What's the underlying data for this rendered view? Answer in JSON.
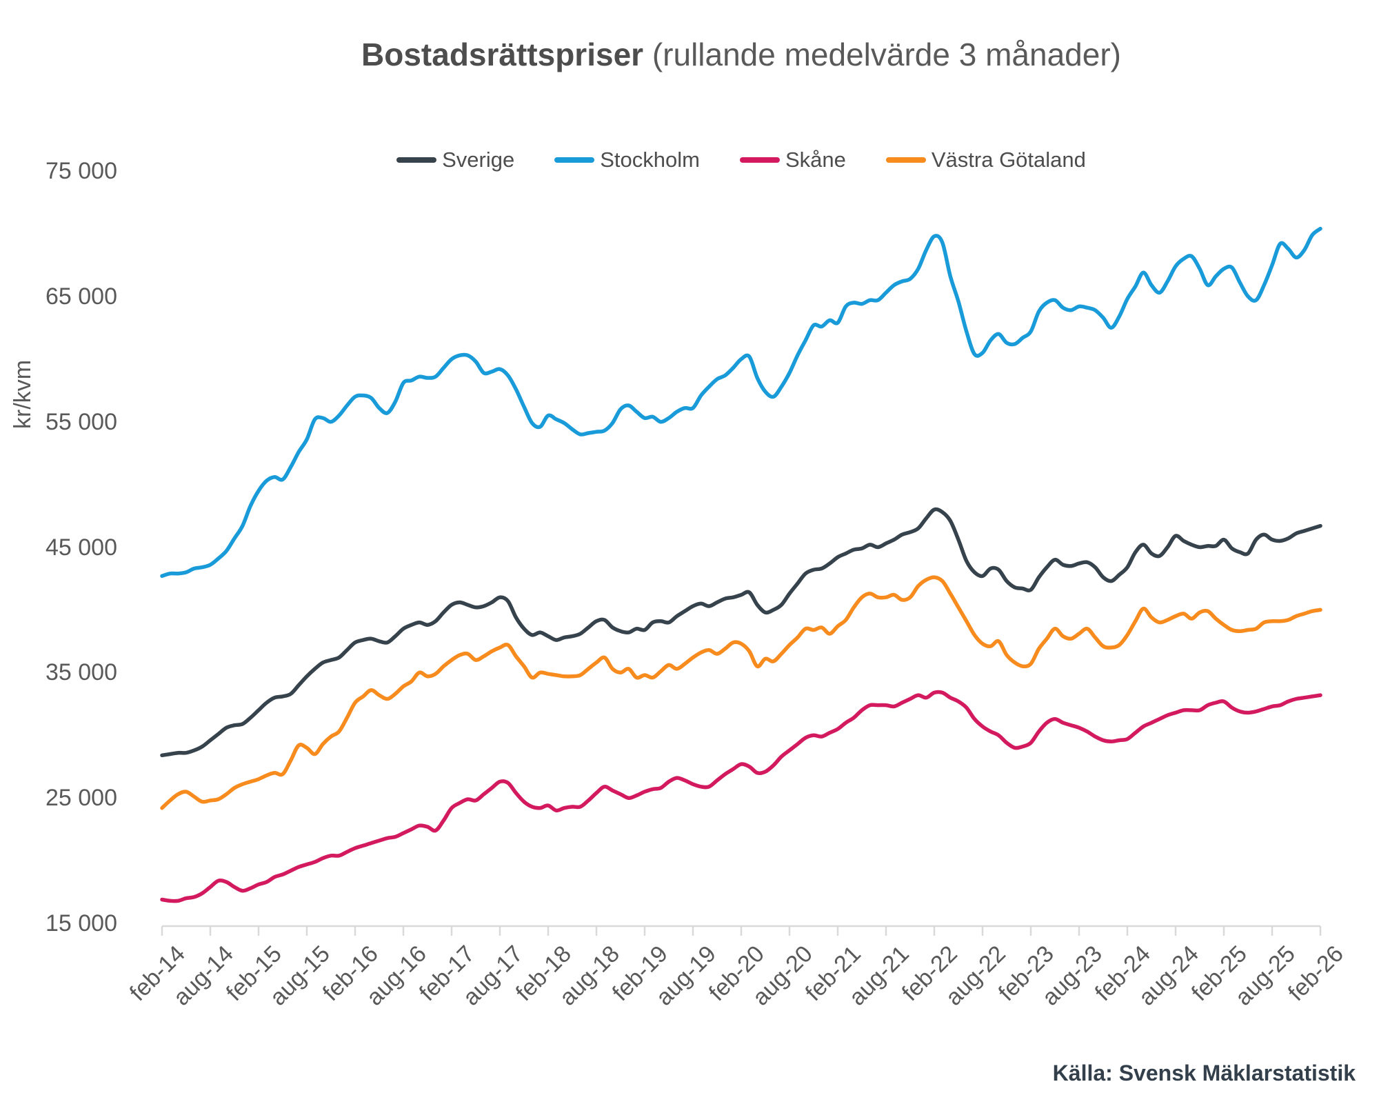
{
  "title": {
    "bold": "Bostadsrättspriser",
    "regular": " (rullande medelvärde 3 månader)"
  },
  "source_note": "Källa: Svensk Mäklarstatistik",
  "y_axis": {
    "title": "kr/kvm",
    "tick_labels": [
      "75 000",
      "65 000",
      "55 000",
      "45 000",
      "35 000",
      "25 000",
      "15 000"
    ],
    "tick_values": [
      75000,
      65000,
      55000,
      45000,
      35000,
      25000,
      15000
    ]
  },
  "x_axis": {
    "tick_labels": [
      "feb-14",
      "aug-14",
      "feb-15",
      "aug-15",
      "feb-16",
      "aug-16",
      "feb-17",
      "aug-17",
      "feb-18",
      "aug-18",
      "feb-19",
      "aug-19",
      "feb-20",
      "aug-20",
      "feb-21",
      "aug-21",
      "feb-22",
      "aug-22",
      "feb-23",
      "aug-23",
      "feb-24",
      "aug-24",
      "feb-25",
      "aug-25",
      "feb-26"
    ]
  },
  "chart_data": {
    "type": "line",
    "title": "Bostadsrättspriser (rullande medelvärde 3 månader)",
    "ylabel": "kr/kvm",
    "ylim": [
      15000,
      75000
    ],
    "grid": false,
    "legend_position": "top-center",
    "x_start": "2014-02",
    "x_end": "2026-02",
    "x_frequency": "monthly",
    "n_points": 145,
    "x_tick_labels": [
      "feb-14",
      "aug-14",
      "feb-15",
      "aug-15",
      "feb-16",
      "aug-16",
      "feb-17",
      "aug-17",
      "feb-18",
      "aug-18",
      "feb-19",
      "aug-19",
      "feb-20",
      "aug-20",
      "feb-21",
      "aug-21",
      "feb-22",
      "aug-22",
      "feb-23",
      "aug-23",
      "feb-24",
      "aug-24",
      "feb-25",
      "aug-25",
      "feb-26"
    ],
    "series": [
      {
        "name": "Sverige",
        "color": "#36424c",
        "values": [
          28400,
          28500,
          28600,
          28600,
          28800,
          29100,
          29600,
          30100,
          30600,
          30800,
          30900,
          31400,
          32000,
          32600,
          33000,
          33100,
          33300,
          34000,
          34700,
          35300,
          35800,
          36000,
          36200,
          36800,
          37400,
          37600,
          37700,
          37500,
          37400,
          37900,
          38500,
          38800,
          39000,
          38800,
          39100,
          39800,
          40400,
          40600,
          40400,
          40200,
          40300,
          40600,
          41000,
          40700,
          39400,
          38500,
          38000,
          38200,
          37900,
          37600,
          37800,
          37900,
          38100,
          38600,
          39100,
          39200,
          38600,
          38300,
          38200,
          38500,
          38400,
          39000,
          39100,
          39000,
          39500,
          39900,
          40300,
          40500,
          40300,
          40600,
          40900,
          41000,
          41200,
          41400,
          40400,
          39800,
          40000,
          40400,
          41300,
          42100,
          42900,
          43200,
          43300,
          43700,
          44200,
          44500,
          44800,
          44900,
          45200,
          45000,
          45300,
          45600,
          46000,
          46200,
          46500,
          47300,
          48000,
          47800,
          47100,
          45600,
          43900,
          43000,
          42700,
          43300,
          43200,
          42300,
          41800,
          41700,
          41600,
          42600,
          43400,
          44000,
          43600,
          43500,
          43700,
          43800,
          43400,
          42600,
          42300,
          42800,
          43400,
          44600,
          45200,
          44500,
          44300,
          45000,
          45900,
          45500,
          45200,
          45000,
          45100,
          45100,
          45600,
          44900,
          44600,
          44500,
          45600,
          46000,
          45600,
          45500,
          45700,
          46100,
          46300,
          46500,
          46700
        ]
      },
      {
        "name": "Stockholm",
        "color": "#189bd8",
        "values": [
          42700,
          42900,
          42900,
          43000,
          43300,
          43400,
          43600,
          44100,
          44700,
          45700,
          46700,
          48300,
          49500,
          50300,
          50600,
          50400,
          51400,
          52600,
          53600,
          55200,
          55300,
          55000,
          55500,
          56300,
          57000,
          57100,
          56900,
          56100,
          55700,
          56600,
          58100,
          58300,
          58600,
          58500,
          58600,
          59300,
          60000,
          60300,
          60300,
          59800,
          58900,
          59000,
          59200,
          58700,
          57600,
          56200,
          54900,
          54600,
          55500,
          55200,
          54900,
          54400,
          54000,
          54100,
          54200,
          54300,
          54900,
          56000,
          56300,
          55800,
          55300,
          55400,
          55000,
          55300,
          55800,
          56100,
          56100,
          57100,
          57800,
          58400,
          58700,
          59300,
          60000,
          60200,
          58500,
          57400,
          57000,
          57800,
          58900,
          60300,
          61500,
          62700,
          62600,
          63100,
          62900,
          64200,
          64500,
          64400,
          64700,
          64700,
          65300,
          65900,
          66200,
          66400,
          67200,
          68700,
          69800,
          69300,
          66600,
          64600,
          62200,
          60400,
          60500,
          61500,
          62000,
          61300,
          61200,
          61700,
          62200,
          63800,
          64500,
          64700,
          64100,
          63900,
          64200,
          64100,
          63900,
          63300,
          62500,
          63400,
          64800,
          65800,
          66900,
          65900,
          65300,
          66200,
          67400,
          68000,
          68200,
          67200,
          65900,
          66600,
          67200,
          67300,
          66100,
          65000,
          64700,
          65900,
          67500,
          69200,
          68800,
          68100,
          68700,
          69900,
          70400
        ]
      },
      {
        "name": "Skåne",
        "color": "#d31a5f",
        "values": [
          16900,
          16800,
          16800,
          17000,
          17100,
          17400,
          17900,
          18400,
          18300,
          17900,
          17600,
          17800,
          18100,
          18300,
          18700,
          18900,
          19200,
          19500,
          19700,
          19900,
          20200,
          20400,
          20400,
          20700,
          21000,
          21200,
          21400,
          21600,
          21800,
          21900,
          22200,
          22500,
          22800,
          22700,
          22400,
          23200,
          24200,
          24600,
          24900,
          24800,
          25300,
          25800,
          26300,
          26200,
          25400,
          24700,
          24300,
          24200,
          24400,
          24000,
          24200,
          24300,
          24300,
          24800,
          25400,
          25900,
          25600,
          25300,
          25000,
          25200,
          25500,
          25700,
          25800,
          26300,
          26600,
          26400,
          26100,
          25900,
          25900,
          26400,
          26900,
          27300,
          27700,
          27500,
          27000,
          27100,
          27600,
          28300,
          28800,
          29300,
          29800,
          30000,
          29900,
          30200,
          30500,
          31000,
          31400,
          32000,
          32400,
          32400,
          32400,
          32300,
          32600,
          32900,
          33200,
          33000,
          33400,
          33400,
          33000,
          32700,
          32200,
          31300,
          30700,
          30300,
          30000,
          29400,
          29000,
          29100,
          29400,
          30300,
          31000,
          31300,
          31000,
          30800,
          30600,
          30300,
          29900,
          29600,
          29500,
          29600,
          29700,
          30200,
          30700,
          31000,
          31300,
          31600,
          31800,
          32000,
          32000,
          32000,
          32400,
          32600,
          32700,
          32200,
          31900,
          31800,
          31900,
          32100,
          32300,
          32400,
          32700,
          32900,
          33000,
          33100,
          33200
        ]
      },
      {
        "name": "Västra Götaland",
        "color": "#f88b1e",
        "values": [
          24200,
          24800,
          25300,
          25500,
          25100,
          24700,
          24800,
          24900,
          25300,
          25800,
          26100,
          26300,
          26500,
          26800,
          27000,
          26900,
          28000,
          29200,
          29000,
          28500,
          29300,
          29900,
          30300,
          31400,
          32600,
          33100,
          33600,
          33200,
          32900,
          33300,
          33900,
          34300,
          35000,
          34700,
          34900,
          35500,
          36000,
          36400,
          36500,
          36000,
          36300,
          36700,
          37000,
          37200,
          36300,
          35500,
          34600,
          35000,
          34900,
          34800,
          34700,
          34700,
          34800,
          35300,
          35800,
          36200,
          35300,
          35000,
          35300,
          34600,
          34800,
          34600,
          35100,
          35600,
          35300,
          35700,
          36200,
          36600,
          36800,
          36500,
          36900,
          37400,
          37300,
          36700,
          35500,
          36100,
          35900,
          36500,
          37200,
          37800,
          38500,
          38400,
          38600,
          38100,
          38700,
          39200,
          40200,
          41000,
          41300,
          41000,
          41000,
          41200,
          40800,
          41000,
          41900,
          42400,
          42600,
          42300,
          41300,
          40200,
          39100,
          38000,
          37300,
          37100,
          37500,
          36400,
          35800,
          35500,
          35700,
          36900,
          37700,
          38500,
          37900,
          37700,
          38100,
          38500,
          37800,
          37100,
          37000,
          37200,
          38000,
          39100,
          40100,
          39400,
          39000,
          39200,
          39500,
          39700,
          39300,
          39800,
          39900,
          39300,
          38800,
          38400,
          38300,
          38400,
          38500,
          39000,
          39100,
          39100,
          39200,
          39500,
          39700,
          39900,
          40000
        ]
      }
    ]
  },
  "layout_values": {
    "axis_color": "#d9d9d9"
  }
}
